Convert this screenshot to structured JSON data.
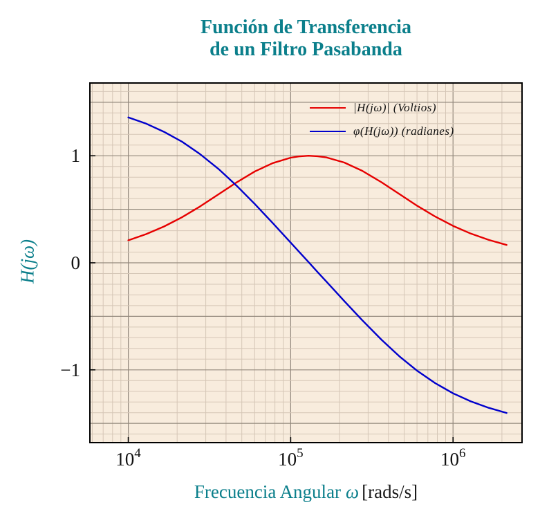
{
  "chart_data": {
    "type": "line",
    "title": "Función de Transferencia de un Filtro Pasabanda",
    "title_lines": [
      "Función de Transferencia",
      "de un Filtro Pasabanda"
    ],
    "xlabel": "Frecuencia Angular ω [rads/s]",
    "xlabel_main": "Frecuencia Angular",
    "xlabel_symbol": "ω",
    "xlabel_unit": "[rads/s]",
    "ylabel": "H(jω)",
    "x_scale": "log",
    "y_scale": "linear",
    "xlim": [
      5800,
      2660000
    ],
    "ylim": [
      -1.68,
      1.68
    ],
    "grid": "both",
    "legend_position": "top-right",
    "x": [
      10000,
      12880,
      16600,
      21380,
      27540,
      36310,
      46770,
      60260,
      77620,
      100000,
      112200,
      128800,
      146200,
      166000,
      213800,
      275400,
      363100,
      467700,
      602600,
      776200,
      1000000,
      1288000,
      1660000,
      2138000
    ],
    "series": [
      {
        "name": "|H(jω)| (Voltios)",
        "color": "#e60000",
        "values": [
          0.21,
          0.268,
          0.339,
          0.425,
          0.525,
          0.644,
          0.754,
          0.854,
          0.932,
          0.982,
          0.994,
          1.0,
          0.996,
          0.985,
          0.937,
          0.86,
          0.752,
          0.642,
          0.532,
          0.432,
          0.345,
          0.273,
          0.214,
          0.167
        ]
      },
      {
        "name": "φ(H(jω)) (radianes)",
        "color": "#0000cc",
        "values": [
          1.359,
          1.3,
          1.224,
          1.132,
          1.018,
          0.871,
          0.716,
          0.548,
          0.37,
          0.189,
          0.106,
          0.007,
          -0.085,
          -0.176,
          -0.357,
          -0.535,
          -0.72,
          -0.874,
          -1.01,
          -1.124,
          -1.219,
          -1.295,
          -1.355,
          -1.403
        ]
      }
    ],
    "x_ticks": [
      {
        "value": 10000,
        "base": "10",
        "exp": "4"
      },
      {
        "value": 100000,
        "base": "10",
        "exp": "5"
      },
      {
        "value": 1000000,
        "base": "10",
        "exp": "6"
      }
    ],
    "y_ticks": [
      {
        "value": 1,
        "label": "1"
      },
      {
        "value": 0,
        "label": "0"
      },
      {
        "value": -1,
        "label": "−1"
      }
    ]
  },
  "styles": {
    "accent": "#0b7f8b",
    "plot_bg": "#f8ecdd",
    "grid_minor": "#d5c6b6",
    "grid_major": "#93897d",
    "axis_color": "#000000",
    "tick_label_color": "#111111",
    "unit_color": "#1a1a1a",
    "magnitude_color": "#e60000",
    "phase_color": "#0000cc"
  }
}
